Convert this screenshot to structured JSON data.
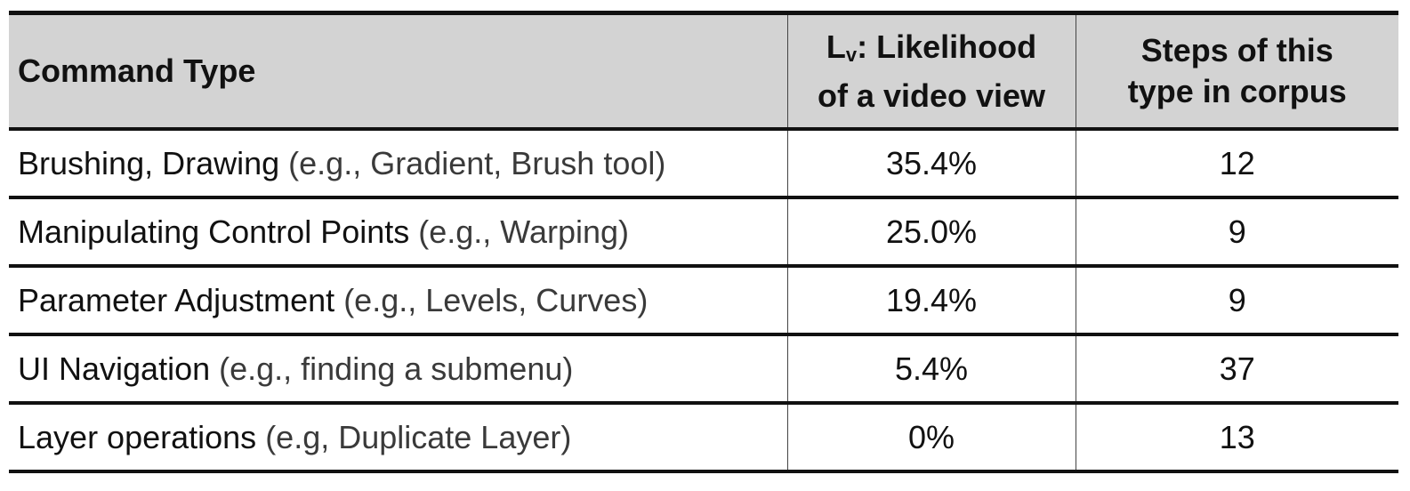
{
  "table": {
    "headers": {
      "command_type": "Command Type",
      "likelihood_prefix": "L",
      "likelihood_sub": "v",
      "likelihood_line1_rest": ": Likelihood",
      "likelihood_line2": "of a video view",
      "steps_line1": "Steps of this",
      "steps_line2": "type in corpus"
    },
    "rows": [
      {
        "command": "Brushing, Drawing",
        "example": "(e.g., Gradient, Brush tool)",
        "likelihood": "35.4%",
        "steps": "12"
      },
      {
        "command": "Manipulating Control Points",
        "example": "(e.g., Warping)",
        "likelihood": "25.0%",
        "steps": "9"
      },
      {
        "command": "Parameter Adjustment",
        "example": "(e.g., Levels, Curves)",
        "likelihood": "19.4%",
        "steps": "9"
      },
      {
        "command": "UI Navigation",
        "example": "(e.g., finding a submenu)",
        "likelihood": "5.4%",
        "steps": "37"
      },
      {
        "command": "Layer operations",
        "example": "(e.g, Duplicate Layer)",
        "likelihood": "0%",
        "steps": "13"
      }
    ]
  }
}
